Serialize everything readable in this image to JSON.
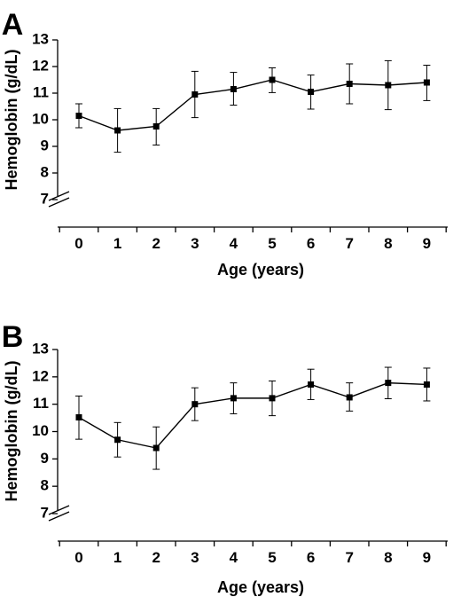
{
  "chart_data": [
    {
      "type": "line",
      "panel": "A",
      "xlabel": "Age (years)",
      "ylabel": "Hemoglobin (g/dL)",
      "ylim": [
        7,
        13
      ],
      "yticks": [
        "7",
        "8",
        "9",
        "10",
        "11",
        "12",
        "13"
      ],
      "axis_break": true,
      "grid": false,
      "x": [
        "0",
        "1",
        "2",
        "3",
        "4",
        "5",
        "6",
        "7",
        "8",
        "9"
      ],
      "series": [
        {
          "values": [
            10.15,
            9.6,
            9.75,
            10.95,
            11.15,
            11.5,
            11.05,
            11.35,
            11.3,
            11.4
          ],
          "err_low": [
            9.7,
            8.78,
            9.05,
            10.08,
            10.55,
            11.02,
            10.4,
            10.6,
            10.38,
            10.72
          ],
          "err_high": [
            10.6,
            10.42,
            10.42,
            11.82,
            11.78,
            11.95,
            11.68,
            12.1,
            12.22,
            12.05
          ]
        }
      ]
    },
    {
      "type": "line",
      "panel": "B",
      "xlabel": "Age (years)",
      "ylabel": "Hemoglobin (g/dL)",
      "ylim": [
        7,
        13
      ],
      "yticks": [
        "7",
        "8",
        "9",
        "10",
        "11",
        "12",
        "13"
      ],
      "axis_break": true,
      "grid": false,
      "x": [
        "0",
        "1",
        "2",
        "3",
        "4",
        "5",
        "6",
        "7",
        "8",
        "9"
      ],
      "series": [
        {
          "values": [
            10.52,
            9.7,
            9.4,
            11.0,
            11.22,
            11.22,
            11.72,
            11.25,
            11.78,
            11.72
          ],
          "err_low": [
            9.72,
            9.07,
            8.62,
            10.4,
            10.65,
            10.58,
            11.17,
            10.75,
            11.2,
            11.12
          ],
          "err_high": [
            11.3,
            10.33,
            10.17,
            11.6,
            11.78,
            11.85,
            12.28,
            11.78,
            12.35,
            12.32
          ]
        }
      ]
    }
  ]
}
